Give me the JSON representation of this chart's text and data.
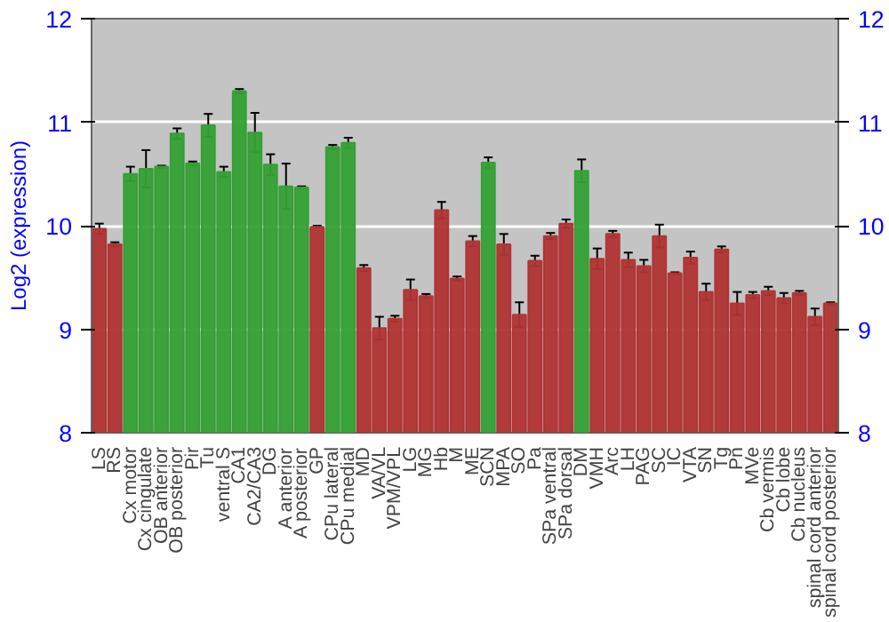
{
  "chart_data": {
    "type": "bar",
    "ylabel": "Log2 (expression)",
    "categories": [
      "LS",
      "RS",
      "Cx motor",
      "Cx cingulate",
      "OB anterior",
      "OB posterior",
      "Pir",
      "Tu",
      "ventral S",
      "CA1",
      "CA2/CA3",
      "DG",
      "A anterior",
      "A posterior",
      "GP",
      "CPu lateral",
      "CPu medial",
      "MD",
      "VA/VL",
      "VPM/VPL",
      "LG",
      "MG",
      "Hb",
      "M",
      "ME",
      "SCN",
      "MPA",
      "SO",
      "Pa",
      "SPa ventral",
      "SPa dorsal",
      "DM",
      "VMH",
      "Arc",
      "LH",
      "PAG",
      "SC",
      "IC",
      "VTA",
      "SN",
      "Tg",
      "Pn",
      "MVe",
      "Cb vermis",
      "Cb lobe",
      "Cb nucleus",
      "spinal cord anterior",
      "spinal cord posterior"
    ],
    "values": [
      9.97,
      9.82,
      10.5,
      10.55,
      10.57,
      10.89,
      10.6,
      10.97,
      10.52,
      11.3,
      10.9,
      10.59,
      10.38,
      10.37,
      9.99,
      10.76,
      10.8,
      9.59,
      9.01,
      9.1,
      9.38,
      9.32,
      10.15,
      9.49,
      9.85,
      10.61,
      9.82,
      9.14,
      9.66,
      9.9,
      10.02,
      10.53,
      9.68,
      9.92,
      9.67,
      9.61,
      9.9,
      9.54,
      9.69,
      9.36,
      9.77,
      9.25,
      9.33,
      9.37,
      9.3,
      9.35,
      9.12,
      9.25
    ],
    "errors": [
      0.05,
      0.02,
      0.07,
      0.18,
      0.01,
      0.05,
      0.02,
      0.11,
      0.05,
      0.02,
      0.19,
      0.1,
      0.22,
      0.01,
      0.01,
      0.02,
      0.05,
      0.03,
      0.11,
      0.03,
      0.1,
      0.02,
      0.08,
      0.02,
      0.05,
      0.05,
      0.1,
      0.12,
      0.05,
      0.03,
      0.04,
      0.11,
      0.1,
      0.03,
      0.07,
      0.06,
      0.11,
      0.01,
      0.06,
      0.08,
      0.03,
      0.11,
      0.03,
      0.04,
      0.05,
      0.02,
      0.08,
      0.01
    ],
    "colors": [
      "#b03434",
      "#b03434",
      "#35a035",
      "#35a035",
      "#35a035",
      "#35a035",
      "#35a035",
      "#35a035",
      "#35a035",
      "#35a035",
      "#35a035",
      "#35a035",
      "#35a035",
      "#35a035",
      "#b03434",
      "#35a035",
      "#35a035",
      "#b03434",
      "#b03434",
      "#b03434",
      "#b03434",
      "#b03434",
      "#b03434",
      "#b03434",
      "#b03434",
      "#35a035",
      "#b03434",
      "#b03434",
      "#b03434",
      "#b03434",
      "#b03434",
      "#35a035",
      "#b03434",
      "#b03434",
      "#b03434",
      "#b03434",
      "#b03434",
      "#b03434",
      "#b03434",
      "#b03434",
      "#b03434",
      "#b03434",
      "#b03434",
      "#b03434",
      "#b03434",
      "#b03434",
      "#b03434",
      "#b03434"
    ],
    "ylim": [
      8,
      12
    ],
    "yticks": [
      8,
      9,
      10,
      11,
      12
    ],
    "y2lim": [
      8,
      12
    ],
    "y2ticks": [
      8,
      9,
      10,
      11,
      12
    ],
    "grid": "y"
  }
}
